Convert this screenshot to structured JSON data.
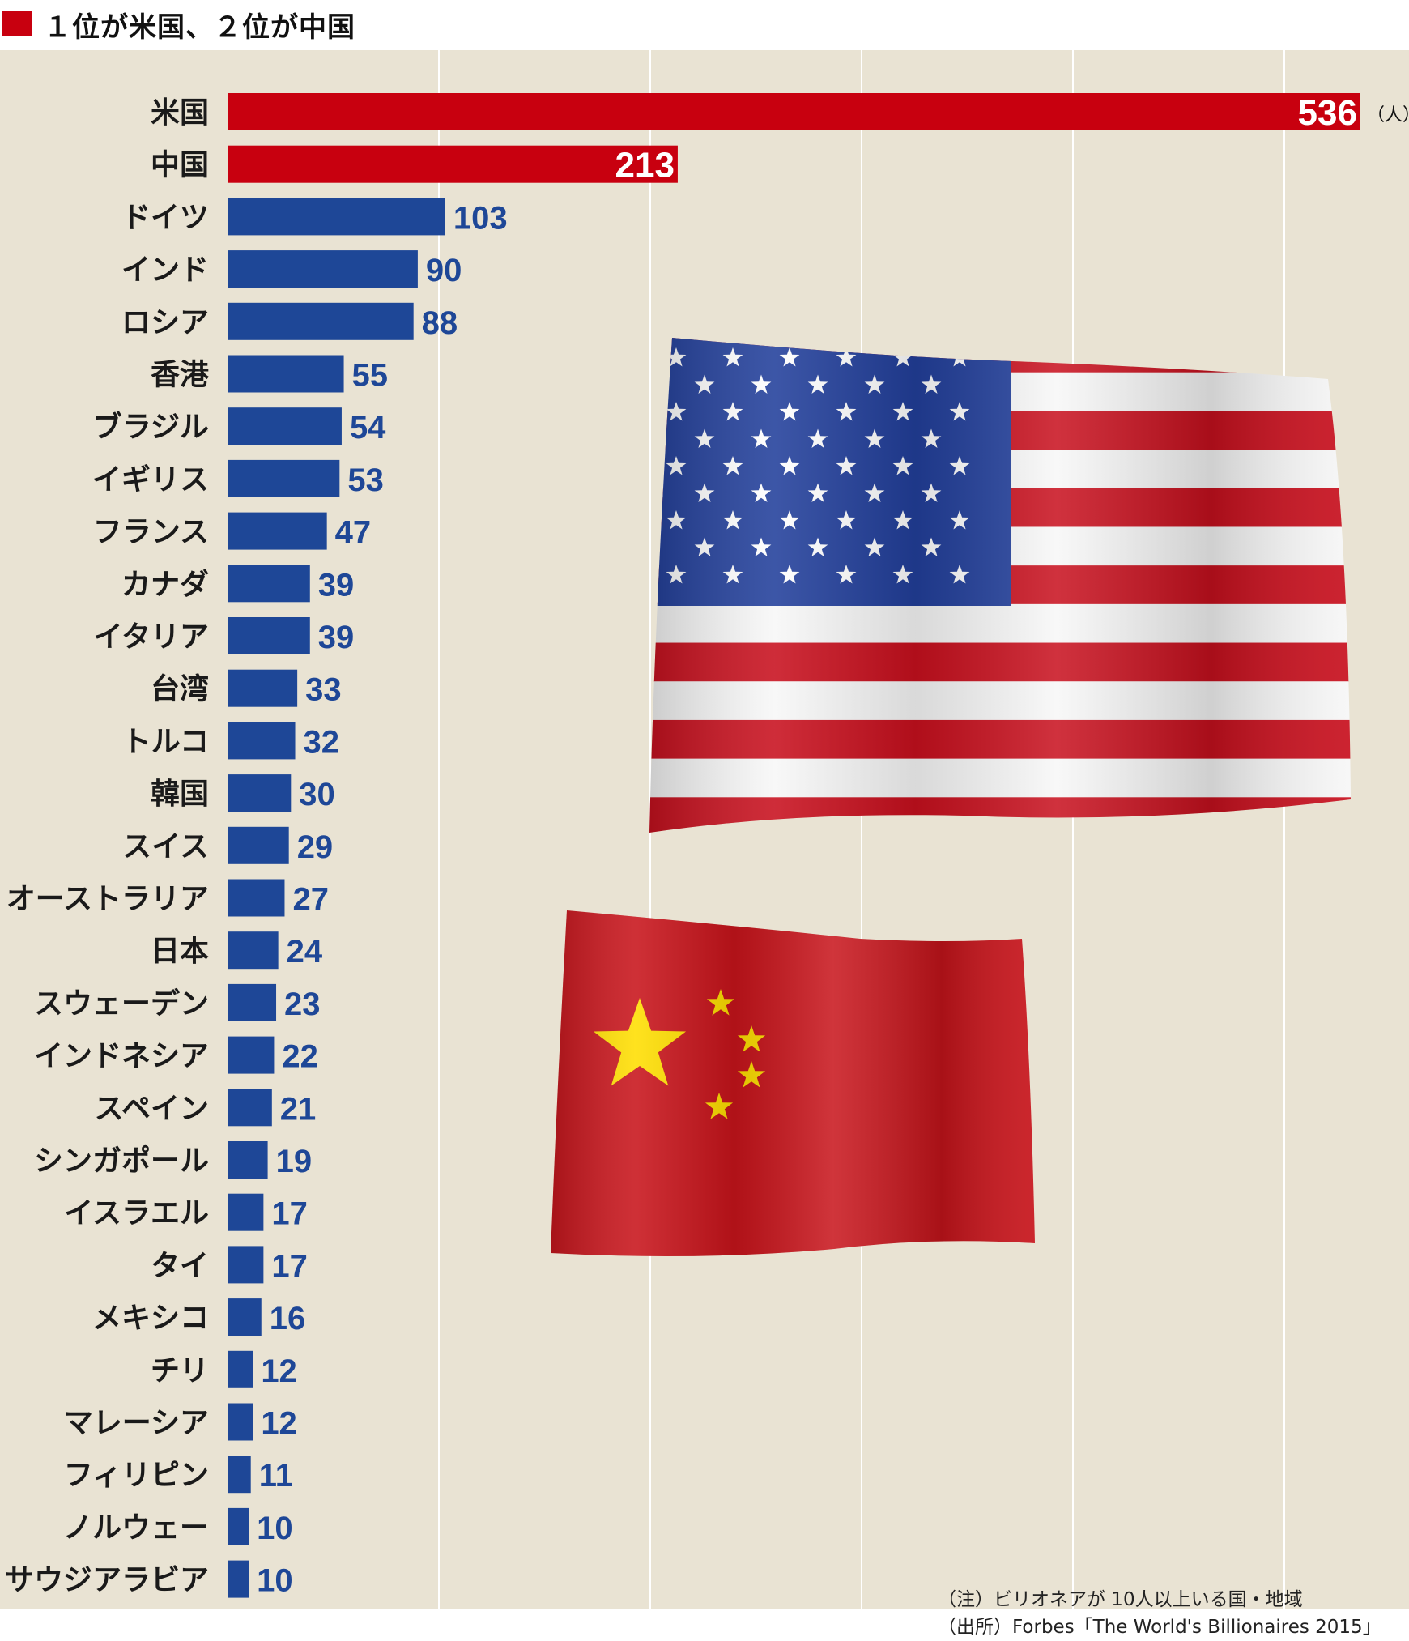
{
  "title": "１位が米国、２位が中国",
  "unit": "（人）",
  "notes": {
    "note": "（注）ビリオネアが 10人以上いる国・地域",
    "source": "（出所）Forbes「The World's Billionaires 2015」"
  },
  "colors": {
    "highlight": "#c8000f",
    "bar": "#1e4797",
    "background": "#e9e3d3",
    "gridline": "#ffffff"
  },
  "images": [
    "us-flag",
    "china-flag"
  ],
  "chart_data": {
    "type": "bar",
    "orientation": "horizontal",
    "title": "１位が米国、２位が中国",
    "xlabel": "",
    "ylabel": "",
    "unit": "（人）",
    "xlim": [
      0,
      560
    ],
    "grid": true,
    "categories": [
      "米国",
      "中国",
      "ドイツ",
      "インド",
      "ロシア",
      "香港",
      "ブラジル",
      "イギリス",
      "フランス",
      "カナダ",
      "イタリア",
      "台湾",
      "トルコ",
      "韓国",
      "スイス",
      "オーストラリア",
      "日本",
      "スウェーデン",
      "インドネシア",
      "スペイン",
      "シンガポール",
      "イスラエル",
      "タイ",
      "メキシコ",
      "チリ",
      "マレーシア",
      "フィリピン",
      "ノルウェー",
      "サウジアラビア"
    ],
    "values": [
      536,
      213,
      103,
      90,
      88,
      55,
      54,
      53,
      47,
      39,
      39,
      33,
      32,
      30,
      29,
      27,
      24,
      23,
      22,
      21,
      19,
      17,
      17,
      16,
      12,
      12,
      11,
      10,
      10
    ],
    "highlighted": [
      "米国",
      "中国"
    ]
  }
}
